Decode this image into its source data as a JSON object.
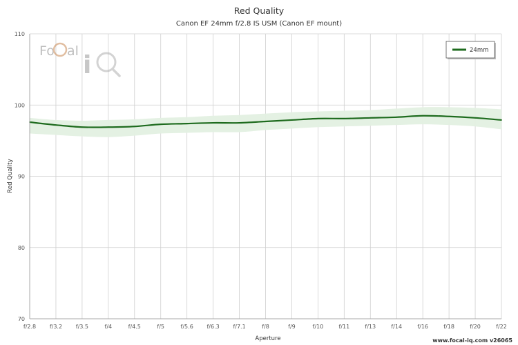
{
  "colors": {
    "line": "#1e6b1e",
    "band": "#e3f0e1",
    "grid": "#cfcfcf",
    "axis": "#a8a8a8"
  },
  "logo": {
    "text": "Focal iq"
  },
  "credit": "www.focal-iq.com v26065",
  "chart_data": {
    "type": "line",
    "title": "Red Quality",
    "subtitle": "Canon EF 24mm f/2.8 IS USM (Canon EF mount)",
    "xlabel": "Aperture",
    "ylabel": "Red Quality",
    "ylim": [
      70,
      110
    ],
    "yticks": [
      70,
      80,
      90,
      100,
      110
    ],
    "grid": true,
    "legend_position": "top-right",
    "categories": [
      "f/2.8",
      "f/3.2",
      "f/3.5",
      "f/4",
      "f/4.5",
      "f/5",
      "f/5.6",
      "f/6.3",
      "f/7.1",
      "f/8",
      "f/9",
      "f/10",
      "f/11",
      "f/13",
      "f/14",
      "f/16",
      "f/18",
      "f/20",
      "f/22"
    ],
    "series": [
      {
        "name": "24mm",
        "values": [
          97.6,
          97.2,
          96.9,
          96.9,
          97.0,
          97.3,
          97.4,
          97.5,
          97.5,
          97.7,
          97.9,
          98.1,
          98.1,
          98.2,
          98.3,
          98.5,
          98.4,
          98.2,
          97.9
        ],
        "band_upper": [
          98.2,
          97.9,
          97.8,
          97.9,
          98.0,
          98.2,
          98.3,
          98.5,
          98.6,
          98.8,
          99.0,
          99.1,
          99.2,
          99.3,
          99.5,
          99.7,
          99.7,
          99.6,
          99.4
        ],
        "band_lower": [
          96.0,
          95.8,
          95.6,
          95.5,
          95.7,
          96.0,
          96.1,
          96.2,
          96.2,
          96.5,
          96.7,
          96.9,
          97.0,
          97.1,
          97.2,
          97.3,
          97.2,
          97.0,
          96.6
        ]
      }
    ]
  }
}
